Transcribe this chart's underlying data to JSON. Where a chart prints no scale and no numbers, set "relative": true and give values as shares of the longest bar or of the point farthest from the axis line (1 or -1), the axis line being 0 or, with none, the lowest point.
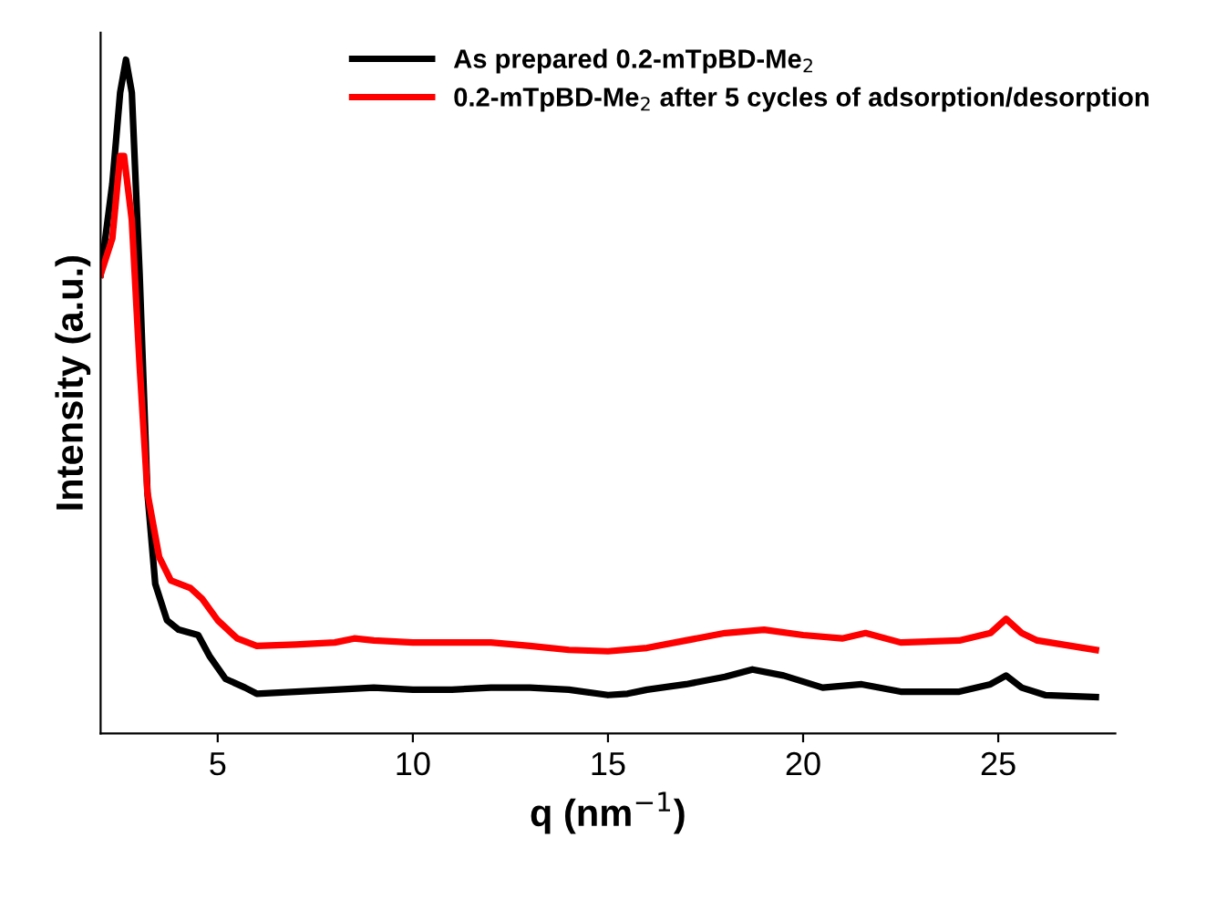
{
  "chart_data": {
    "type": "line",
    "relative": true,
    "xlabel": "q (nm$^{−1}$)",
    "ylabel": "Intensity (a.u.)",
    "xlim": [
      2,
      28
    ],
    "xticks": [
      5,
      10,
      15,
      20,
      25
    ],
    "legend": "top right",
    "grid": false,
    "marker": "none",
    "line_style": "solid",
    "series": [
      {
        "name": "As prepared 0.2-mTpBD-Me$_{2}$",
        "color": "#000000",
        "x": [
          2.0,
          2.3,
          2.5,
          2.65,
          2.8,
          3.0,
          3.2,
          3.4,
          3.7,
          4.0,
          4.5,
          4.8,
          5.2,
          5.7,
          6,
          7,
          8,
          9,
          10,
          11,
          12,
          13,
          14,
          15,
          15.5,
          16,
          17,
          18,
          18.7,
          19.5,
          20.5,
          21.5,
          22.5,
          24,
          24.8,
          25.2,
          25.6,
          26.2,
          27.5
        ],
        "values": [
          0.681,
          0.816,
          0.951,
          1,
          0.951,
          0.681,
          0.357,
          0.222,
          0.168,
          0.154,
          0.146,
          0.114,
          0.081,
          0.068,
          0.059,
          0.062,
          0.065,
          0.068,
          0.065,
          0.065,
          0.068,
          0.068,
          0.065,
          0.057,
          0.059,
          0.065,
          0.073,
          0.084,
          0.095,
          0.086,
          0.068,
          0.073,
          0.062,
          0.062,
          0.073,
          0.086,
          0.068,
          0.057,
          0.054
        ]
      },
      {
        "name": "0.2-mTpBD-Me$_{2}$ after 5 cycles of adsorption/desorption",
        "color": "#ff0000",
        "x": [
          2.0,
          2.3,
          2.5,
          2.6,
          2.8,
          3.0,
          3.2,
          3.5,
          3.8,
          4.3,
          4.6,
          5,
          5.5,
          6,
          7,
          8,
          8.5,
          9,
          10,
          12,
          13,
          14,
          15,
          16,
          17,
          18,
          19,
          20,
          21,
          21.6,
          22.5,
          24,
          24.8,
          25.2,
          25.6,
          26,
          27.5
        ],
        "values": [
          0.681,
          0.735,
          0.857,
          0.857,
          0.762,
          0.546,
          0.357,
          0.262,
          0.227,
          0.216,
          0.2,
          0.168,
          0.141,
          0.13,
          0.132,
          0.135,
          0.141,
          0.138,
          0.135,
          0.135,
          0.13,
          0.124,
          0.122,
          0.127,
          0.138,
          0.149,
          0.154,
          0.146,
          0.141,
          0.149,
          0.135,
          0.138,
          0.149,
          0.17,
          0.149,
          0.138,
          0.124
        ]
      }
    ]
  }
}
